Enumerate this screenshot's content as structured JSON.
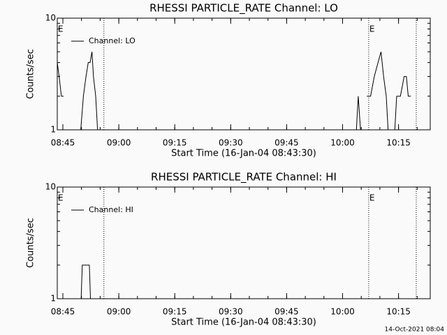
{
  "chart_data": [
    {
      "type": "line",
      "title": "RHESSI PARTICLE_RATE Channel: LO",
      "xlabel": "Start Time (16-Jan-04 08:43:30)",
      "ylabel": "Counts/sec",
      "x": [
        523.5,
        524,
        524.6,
        525.2,
        525.5,
        529.8,
        530.5,
        531.2,
        531.8,
        532.3,
        532.8,
        533.2,
        533.8,
        534.3,
        534.6,
        603.7,
        604.2,
        604.8,
        605.2,
        606.5,
        607.5,
        608.5,
        609.5,
        610.3,
        611,
        611.7,
        612.2,
        612.6,
        614,
        614.5,
        615.5,
        616.5,
        617.1,
        617.6,
        618.3
      ],
      "series": [
        {
          "name": "Channel: LO",
          "color": "#000000",
          "values": [
            4,
            3,
            2,
            2,
            null,
            1,
            2,
            3,
            4,
            4,
            5,
            3,
            2,
            1,
            null,
            1,
            2,
            1,
            null,
            2,
            2,
            3,
            4,
            5,
            3,
            2,
            1,
            null,
            1,
            2,
            2,
            3,
            3,
            2,
            2
          ]
        }
      ],
      "xlim": [
        523.5,
        623.5
      ],
      "ylim": [
        1,
        10
      ],
      "log_y": true,
      "xticks": [
        {
          "value": 525,
          "label": "08:45"
        },
        {
          "value": 540,
          "label": "09:00"
        },
        {
          "value": 555,
          "label": "09:15"
        },
        {
          "value": 570,
          "label": "09:30"
        },
        {
          "value": 585,
          "label": "09:45"
        },
        {
          "value": 600,
          "label": "10:00"
        },
        {
          "value": 615,
          "label": "10:15"
        }
      ],
      "yticks": [
        1,
        10
      ],
      "markers": [
        536,
        607,
        619.75
      ],
      "annotations": [
        {
          "x": 523.5,
          "label": "E"
        },
        {
          "x": 607,
          "label": "E"
        }
      ]
    },
    {
      "type": "line",
      "title": "RHESSI PARTICLE_RATE Channel: HI",
      "xlabel": "Start Time (16-Jan-04 08:43:30)",
      "ylabel": "Counts/sec",
      "x": [
        529.9,
        530.2,
        532.1,
        532.4
      ],
      "series": [
        {
          "name": "Channel: HI",
          "color": "#000000",
          "values": [
            1,
            2,
            2,
            1
          ]
        }
      ],
      "xlim": [
        523.5,
        623.5
      ],
      "ylim": [
        1,
        10
      ],
      "log_y": true,
      "xticks": [
        {
          "value": 525,
          "label": "08:45"
        },
        {
          "value": 540,
          "label": "09:00"
        },
        {
          "value": 555,
          "label": "09:15"
        },
        {
          "value": 570,
          "label": "09:30"
        },
        {
          "value": 585,
          "label": "09:45"
        },
        {
          "value": 600,
          "label": "10:00"
        },
        {
          "value": 615,
          "label": "10:15"
        }
      ],
      "yticks": [
        1,
        10
      ],
      "markers": [
        536,
        607,
        619.75
      ],
      "annotations": [
        {
          "x": 523.5,
          "label": "E"
        },
        {
          "x": 607,
          "label": "E"
        }
      ]
    }
  ],
  "footer": "14-Oct-2021 08:04"
}
